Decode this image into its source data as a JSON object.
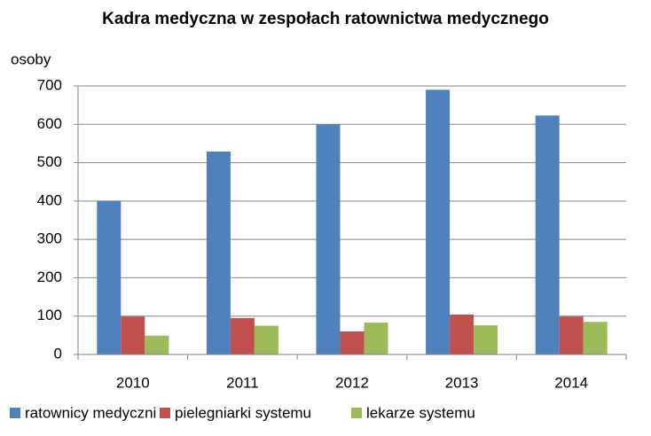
{
  "chart_data": {
    "type": "bar",
    "title": "Kadra medyczna w zespołach ratownictwa medycznego",
    "y_label": "osoby",
    "categories": [
      "2010",
      "2011",
      "2012",
      "2013",
      "2014"
    ],
    "series": [
      {
        "name": "ratownicy medyczni",
        "color": "#4f81bd",
        "values": [
          400,
          529,
          600,
          690,
          623
        ]
      },
      {
        "name": "pielegniarki systemu",
        "color": "#c0504d",
        "values": [
          99,
          95,
          60,
          104,
          99
        ]
      },
      {
        "name": "lekarze systemu",
        "color": "#9bbb59",
        "values": [
          49,
          75,
          83,
          76,
          85
        ]
      }
    ],
    "ylim": [
      0,
      700
    ],
    "yticks": [
      0,
      100,
      200,
      300,
      400,
      500,
      600,
      700
    ],
    "grid": true
  }
}
